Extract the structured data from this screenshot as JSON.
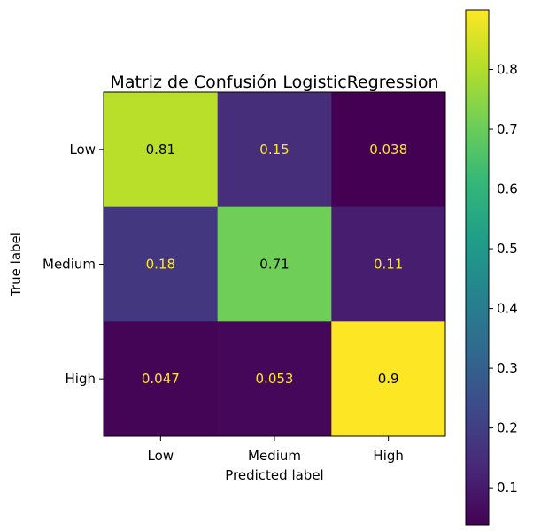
{
  "chart_data": {
    "type": "heatmap",
    "title": "Matriz de Confusión LogisticRegression",
    "xlabel": "Predicted label",
    "ylabel": "True label",
    "x_categories": [
      "Low",
      "Medium",
      "High"
    ],
    "y_categories": [
      "Low",
      "Medium",
      "High"
    ],
    "values": [
      [
        0.81,
        0.15,
        0.038
      ],
      [
        0.18,
        0.71,
        0.11
      ],
      [
        0.047,
        0.053,
        0.9
      ]
    ],
    "colormap": "viridis",
    "colorbar": {
      "range": [
        0.038,
        0.9
      ],
      "ticks": [
        0.1,
        0.2,
        0.3,
        0.4,
        0.5,
        0.6,
        0.7,
        0.8
      ]
    },
    "text_colors": {
      "dark": "#fde725",
      "light": "#000000"
    }
  }
}
